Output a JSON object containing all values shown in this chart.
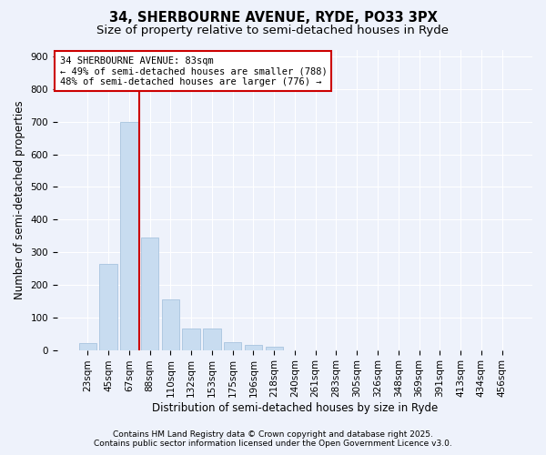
{
  "title1": "34, SHERBOURNE AVENUE, RYDE, PO33 3PX",
  "title2": "Size of property relative to semi-detached houses in Ryde",
  "xlabel": "Distribution of semi-detached houses by size in Ryde",
  "ylabel": "Number of semi-detached properties",
  "annotation_line1": "34 SHERBOURNE AVENUE: 83sqm",
  "annotation_line2": "← 49% of semi-detached houses are smaller (788)",
  "annotation_line3": "48% of semi-detached houses are larger (776) →",
  "footer_line1": "Contains HM Land Registry data © Crown copyright and database right 2025.",
  "footer_line2": "Contains public sector information licensed under the Open Government Licence v3.0.",
  "bins": [
    "23sqm",
    "45sqm",
    "67sqm",
    "88sqm",
    "110sqm",
    "132sqm",
    "153sqm",
    "175sqm",
    "196sqm",
    "218sqm",
    "240sqm",
    "261sqm",
    "283sqm",
    "305sqm",
    "326sqm",
    "348sqm",
    "369sqm",
    "391sqm",
    "413sqm",
    "434sqm",
    "456sqm"
  ],
  "values": [
    20,
    265,
    700,
    345,
    155,
    65,
    65,
    25,
    15,
    10,
    0,
    0,
    0,
    0,
    0,
    0,
    0,
    0,
    0,
    0,
    0
  ],
  "bar_color": "#c8dcf0",
  "bar_edge_color": "#a8c4df",
  "vline_color": "#cc0000",
  "vline_bin_index": 2,
  "ylim": [
    0,
    920
  ],
  "yticks": [
    0,
    100,
    200,
    300,
    400,
    500,
    600,
    700,
    800,
    900
  ],
  "background_color": "#eef2fb",
  "grid_color": "#ffffff",
  "annotation_box_facecolor": "#ffffff",
  "annotation_box_edgecolor": "#cc0000",
  "title1_fontsize": 10.5,
  "title2_fontsize": 9.5,
  "axis_label_fontsize": 8.5,
  "tick_fontsize": 7.5,
  "annotation_fontsize": 7.5,
  "footer_fontsize": 6.5
}
